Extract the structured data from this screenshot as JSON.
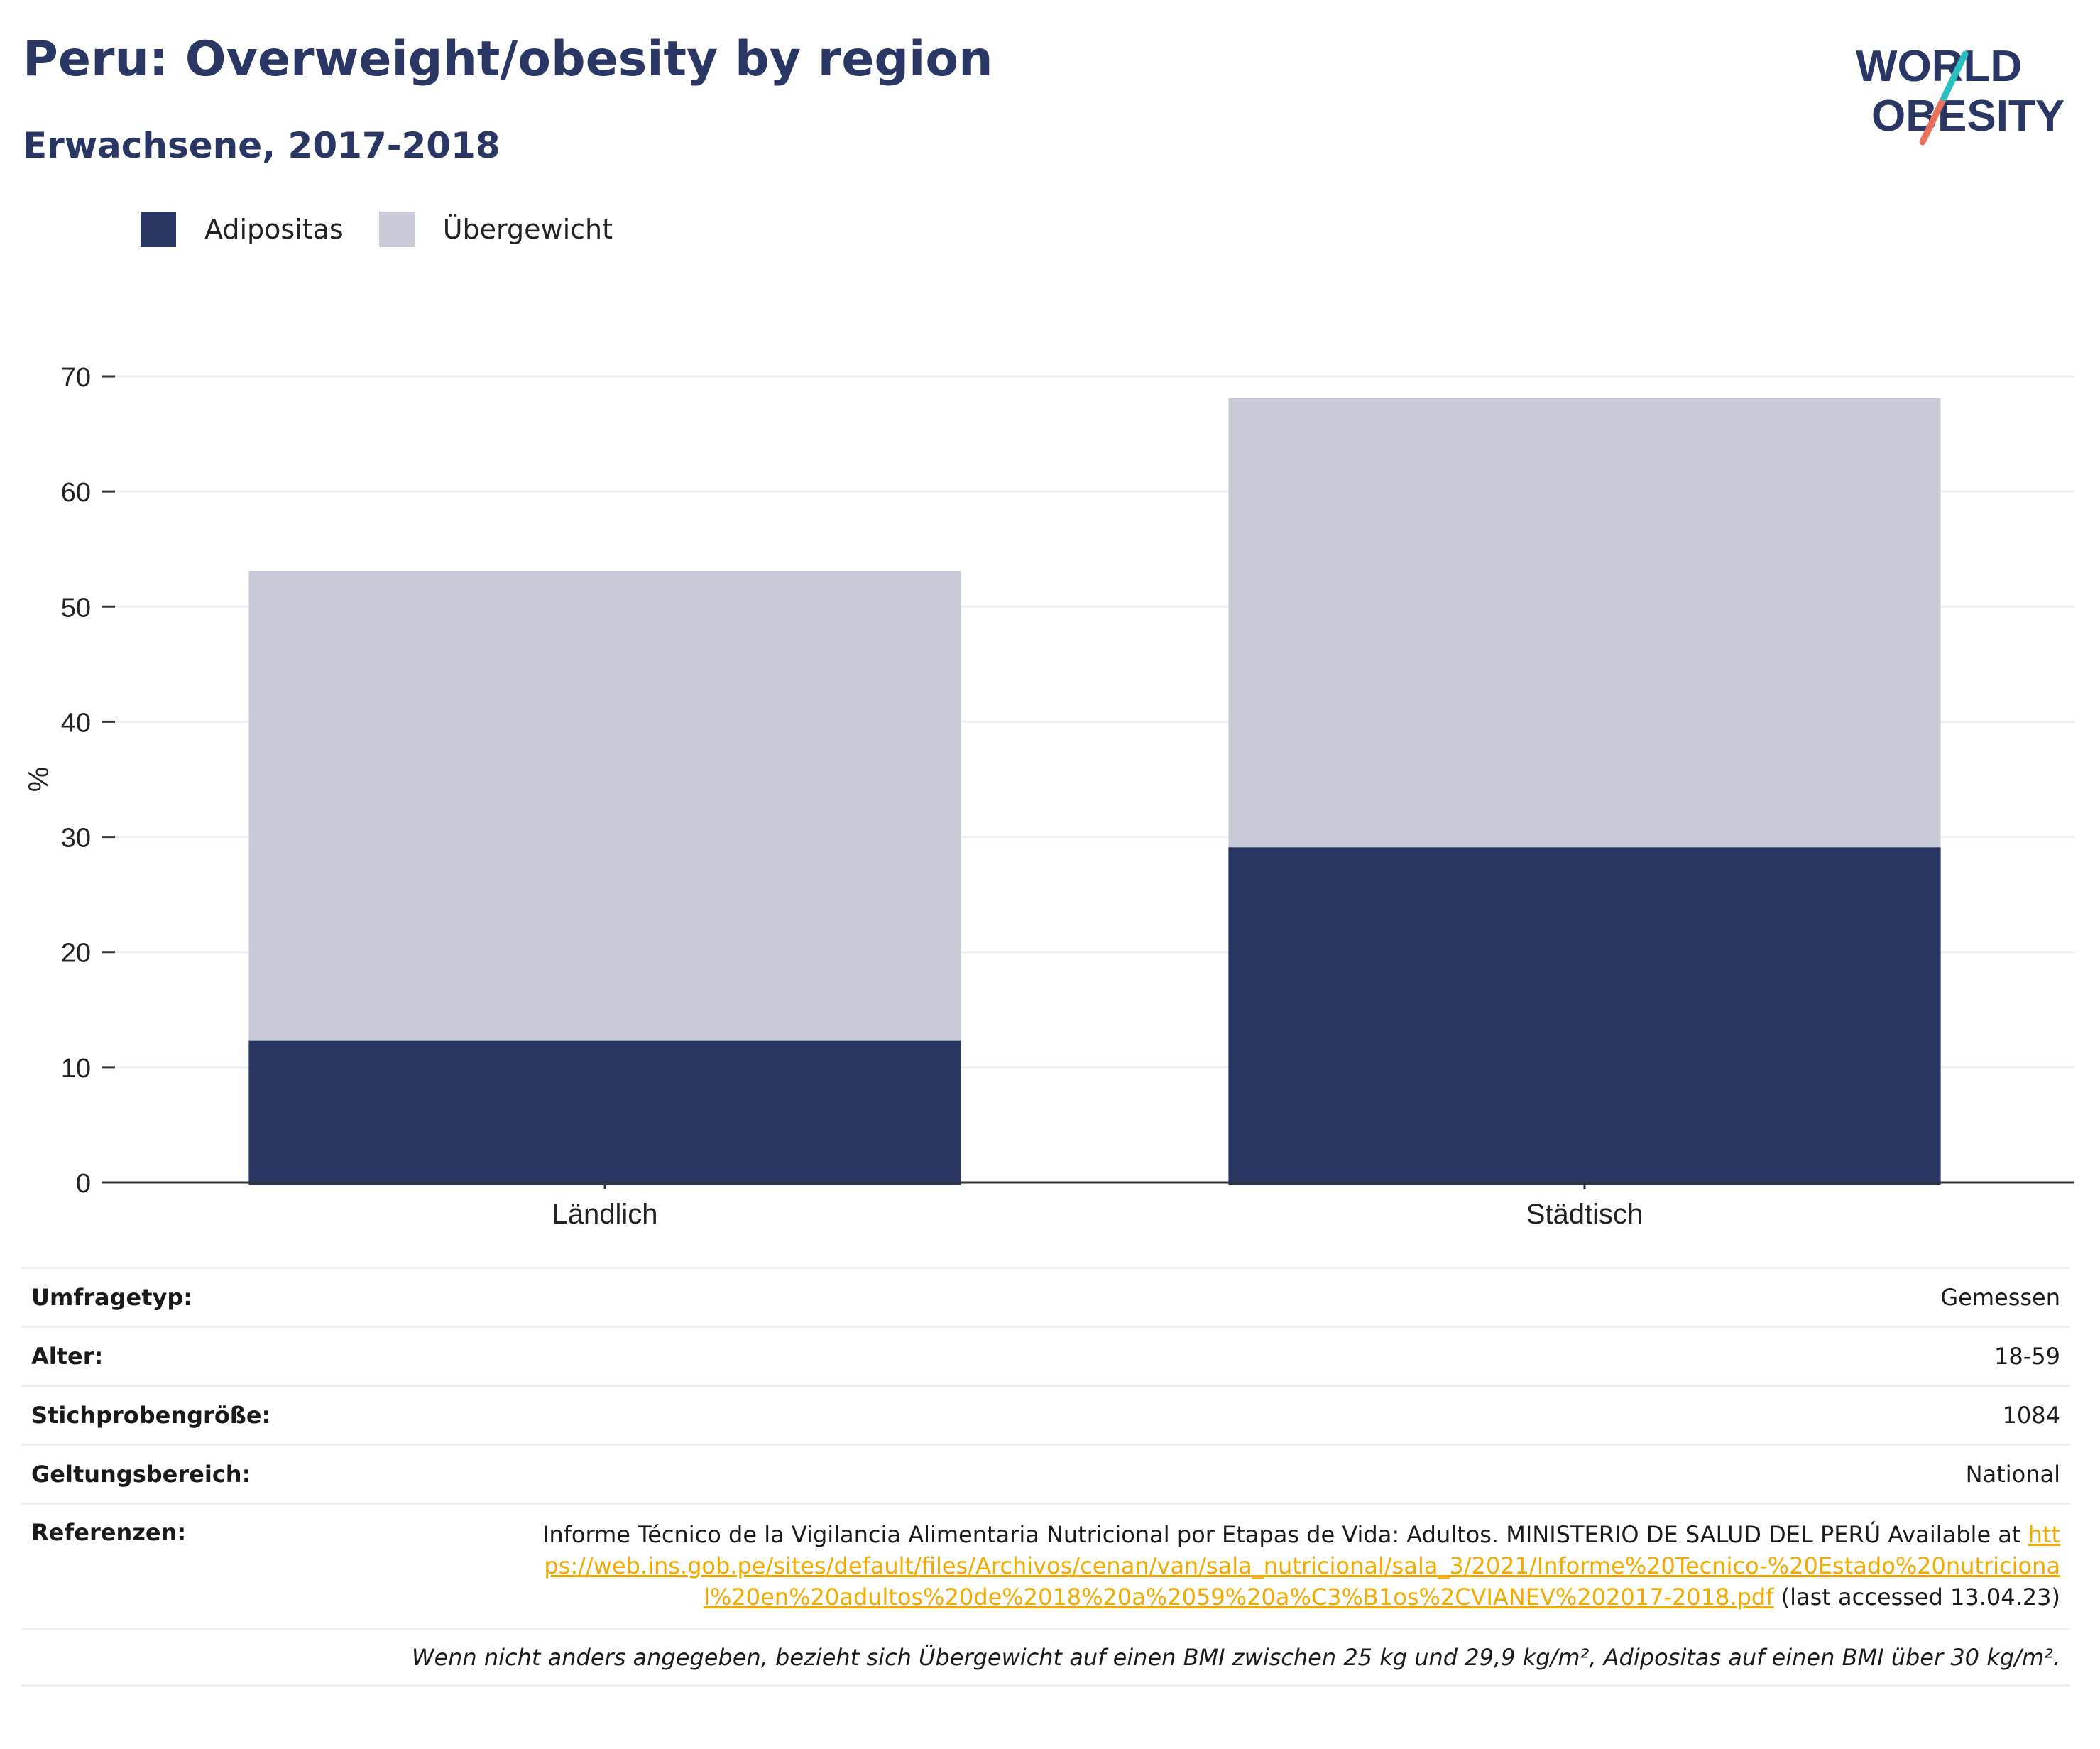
{
  "header": {
    "title": "Peru: Overweight/obesity by region",
    "subtitle": "Erwachsene, 2017-2018",
    "logo_line1": "WORLD",
    "logo_line2": "OBESITY"
  },
  "colors": {
    "obesity": "#2a3663",
    "overweight": "#c9ccd8",
    "title": "#2a3663",
    "link": "#f2a900",
    "logo_teal": "#2bbfbf",
    "logo_coral": "#e8735a"
  },
  "legend": {
    "items": [
      {
        "label": "Adipositas",
        "color": "#2a3663"
      },
      {
        "label": "Übergewicht",
        "color": "#c9ccd8"
      }
    ]
  },
  "chart_data": {
    "type": "bar",
    "stacked": true,
    "categories": [
      "Ländlich",
      "Städtisch"
    ],
    "series": [
      {
        "name": "Adipositas",
        "values": [
          12.3,
          29.1
        ]
      },
      {
        "name": "Übergewicht",
        "values": [
          40.8,
          39.0
        ]
      }
    ],
    "totals": [
      53.1,
      68.1
    ],
    "ylabel": "%",
    "xlabel": "",
    "ylim": [
      0,
      70
    ],
    "yticks": [
      0,
      10,
      20,
      30,
      40,
      50,
      60,
      70
    ],
    "grid": true
  },
  "meta": {
    "survey_type_label": "Umfragetyp:",
    "survey_type_value": "Gemessen",
    "age_label": "Alter:",
    "age_value": "18-59",
    "sample_label": "Stichprobengröße:",
    "sample_value": "1084",
    "scope_label": "Geltungsbereich:",
    "scope_value": "National",
    "references_label": "Referenzen:",
    "references_text": "Informe Técnico de la Vigilancia Alimentaria Nutricional por Etapas de Vida: Adultos. MINISTERIO DE SALUD DEL PERÚ Available at",
    "references_link": "https://web.ins.gob.pe/sites/default/files/Archivos/cenan/van/sala_nutricional/sala_3/2021/Informe%20Tecnico-%20Estado%20nutricional%20en%20adultos%20de%2018%20a%2059%20a%C3%B1os%2CVIANEV%202017-2018.pdf",
    "references_suffix": "(last accessed 13.04.23)",
    "footnote": "Wenn nicht anders angegeben, bezieht sich Übergewicht auf einen BMI zwischen 25 kg und 29,9 kg/m², Adipositas auf einen BMI über 30 kg/m²."
  }
}
